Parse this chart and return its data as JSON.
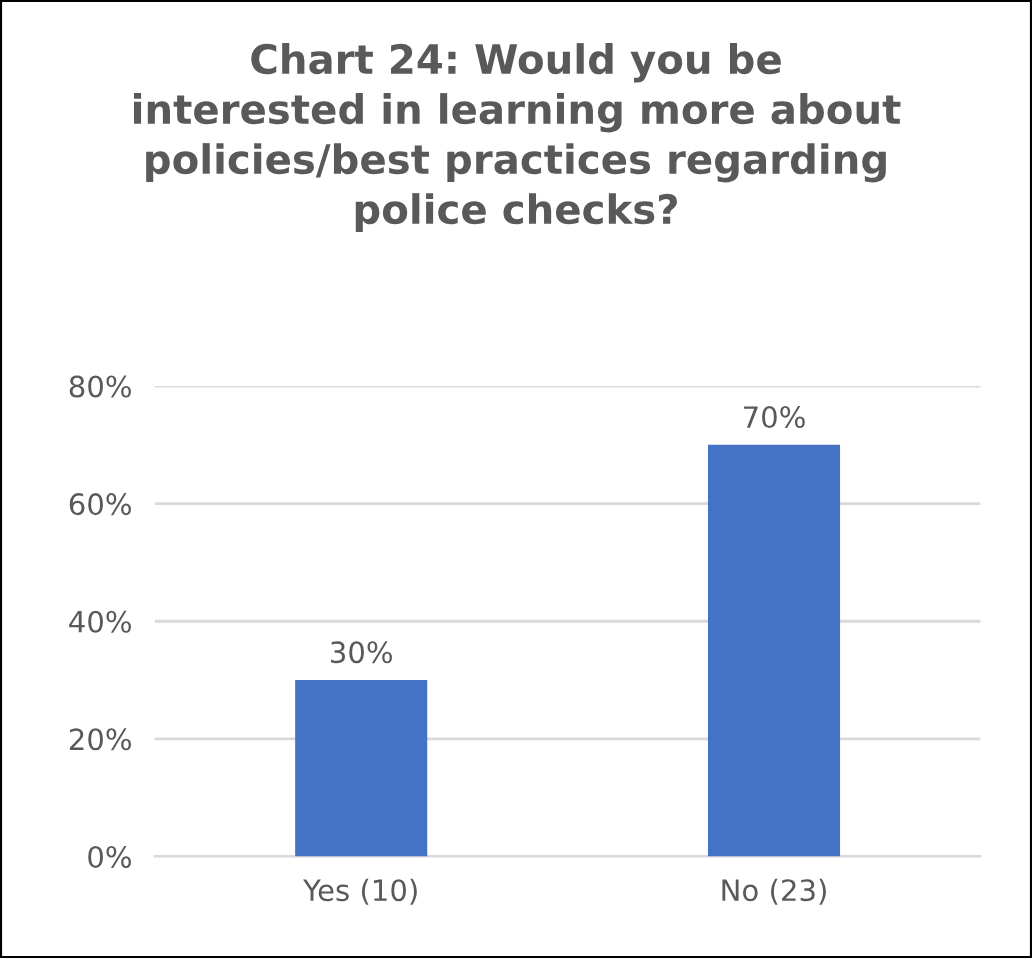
{
  "chart_data": {
    "type": "bar",
    "title": "Chart 24: Would you be\ninterested in learning more about\npolicies/best practices regarding\npolice checks?",
    "categories": [
      "Yes (10)",
      "No (23)"
    ],
    "values": [
      30,
      70
    ],
    "value_labels": [
      "30%",
      "70%"
    ],
    "color": "#4472c4",
    "ylim": [
      0,
      80
    ],
    "yticks": [
      {
        "value": 0,
        "label": "0%"
      },
      {
        "value": 20,
        "label": "20%"
      },
      {
        "value": 40,
        "label": "40%"
      },
      {
        "value": 60,
        "label": "60%"
      },
      {
        "value": 80,
        "label": "80%"
      }
    ],
    "grid": "y",
    "legend": false
  }
}
